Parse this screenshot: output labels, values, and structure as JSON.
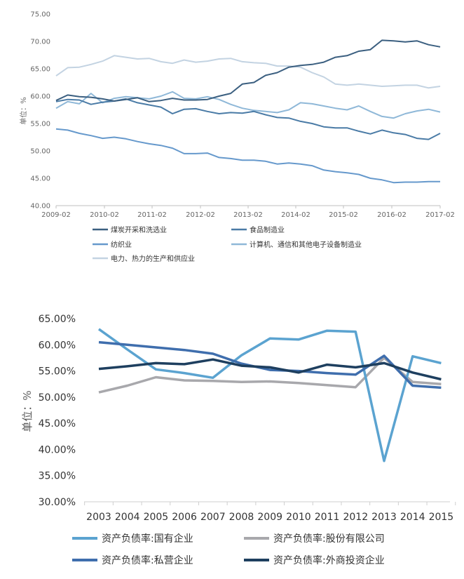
{
  "chart_data": [
    {
      "type": "line",
      "title": "",
      "ylabel": "单位：%",
      "xlabel": "",
      "ylim": [
        40,
        75
      ],
      "yticks": [
        "40.00",
        "45.00",
        "50.00",
        "55.00",
        "60.00",
        "65.00",
        "70.00",
        "75.00"
      ],
      "xticks": [
        "2009-02",
        "2010-02",
        "2011-02",
        "2012-02",
        "2013-02",
        "2014-02",
        "2015-02",
        "2016-02",
        "2017-02"
      ],
      "legend_position": "bottom",
      "series": [
        {
          "name": "煤炭开采和洗选业",
          "color": "#3b5f80",
          "values": [
            59.2,
            60.2,
            59.9,
            59.8,
            59.5,
            59.1,
            59.4,
            59.7,
            59.0,
            59.2,
            59.6,
            59.3,
            59.3,
            59.4,
            60.0,
            60.5,
            62.2,
            62.5,
            63.8,
            64.3,
            65.3,
            65.6,
            65.8,
            66.2,
            67.1,
            67.4,
            68.2,
            68.5,
            70.2,
            70.1,
            69.9,
            70.1,
            69.4,
            69.0
          ]
        },
        {
          "name": "食品制造业",
          "color": "#4a7ba6",
          "values": [
            59.0,
            59.4,
            59.3,
            58.5,
            58.9,
            59.1,
            59.5,
            58.8,
            58.4,
            58.0,
            56.8,
            57.6,
            57.7,
            57.2,
            56.8,
            57.0,
            56.9,
            57.2,
            56.6,
            56.1,
            56.0,
            55.4,
            55.0,
            54.4,
            54.2,
            54.2,
            53.6,
            53.1,
            53.8,
            53.3,
            53.0,
            52.3,
            52.1,
            53.2
          ]
        },
        {
          "name": "纺织业",
          "color": "#6699cc",
          "values": [
            54.0,
            53.8,
            53.2,
            52.8,
            52.3,
            52.5,
            52.2,
            51.7,
            51.3,
            51.0,
            50.5,
            49.5,
            49.5,
            49.6,
            48.8,
            48.6,
            48.3,
            48.3,
            48.1,
            47.6,
            47.8,
            47.6,
            47.3,
            46.5,
            46.2,
            46.0,
            45.7,
            45.0,
            44.7,
            44.2,
            44.3,
            44.3,
            44.4,
            44.4
          ]
        },
        {
          "name": "计算机、通信和其他电子设备制造业",
          "color": "#8fb8d8",
          "values": [
            57.8,
            59.0,
            58.6,
            60.5,
            58.8,
            59.6,
            59.9,
            59.7,
            59.5,
            60.0,
            60.8,
            59.6,
            59.5,
            59.9,
            59.4,
            58.5,
            57.8,
            57.4,
            57.2,
            57.0,
            57.5,
            58.8,
            58.6,
            58.2,
            57.8,
            57.5,
            58.2,
            57.2,
            56.3,
            56.0,
            56.8,
            57.3,
            57.6,
            57.1
          ]
        },
        {
          "name": "电力、热力的生产和供应业",
          "color": "#c3d3e2",
          "values": [
            63.7,
            65.2,
            65.3,
            65.8,
            66.4,
            67.4,
            67.1,
            66.8,
            66.9,
            66.3,
            66.0,
            66.6,
            66.2,
            66.4,
            66.8,
            66.9,
            66.3,
            66.1,
            66.0,
            65.5,
            65.5,
            65.3,
            64.3,
            63.5,
            62.2,
            62.0,
            62.2,
            62.0,
            61.8,
            61.9,
            62.0,
            62.0,
            61.5,
            61.8
          ]
        }
      ]
    },
    {
      "type": "line",
      "title": "",
      "ylabel": "单位：%",
      "xlabel": "",
      "ylim": [
        30,
        65
      ],
      "yticks": [
        "30.00%",
        "35.00%",
        "40.00%",
        "45.00%",
        "50.00%",
        "55.00%",
        "60.00%",
        "65.00%"
      ],
      "categories": [
        "2003",
        "2004",
        "2005",
        "2006",
        "2007",
        "2008",
        "2009",
        "2010",
        "2011",
        "2012",
        "2013",
        "2014",
        "2015"
      ],
      "legend_position": "bottom",
      "series": [
        {
          "name": "资产负债率:国有企业",
          "color": "#5ba3d0",
          "values": [
            63.0,
            59.1,
            55.3,
            54.6,
            53.7,
            58.0,
            61.2,
            61.0,
            62.7,
            62.5,
            37.8,
            57.8,
            56.5
          ]
        },
        {
          "name": "资产负债率:股份有限公司",
          "color": "#a8a8ac",
          "values": [
            50.9,
            52.2,
            53.8,
            53.2,
            53.1,
            52.9,
            53.0,
            52.7,
            52.3,
            51.9,
            57.5,
            52.9,
            52.5
          ]
        },
        {
          "name": "资产负债率:私营企业",
          "color": "#3f6ead",
          "values": [
            60.5,
            60.0,
            59.5,
            59.0,
            58.3,
            56.4,
            55.2,
            55.0,
            54.6,
            54.3,
            57.9,
            52.2,
            51.8
          ]
        },
        {
          "name": "资产负债率:外商投资企业",
          "color": "#1e3f5f",
          "values": [
            55.4,
            55.9,
            56.5,
            56.3,
            57.2,
            56.0,
            55.7,
            54.7,
            56.2,
            55.7,
            56.5,
            54.7,
            53.4
          ]
        }
      ]
    }
  ]
}
